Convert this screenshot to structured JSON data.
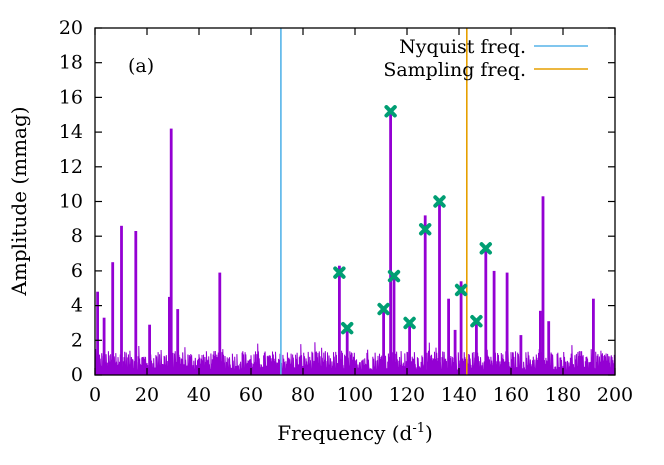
{
  "chart_data": {
    "type": "line",
    "panel_label": "(a)",
    "xlabel": "Frequency (d",
    "xlabel_sup": "-1",
    "xlabel_end": ")",
    "ylabel": "Amplitude (mmag)",
    "xlim": [
      0,
      200
    ],
    "ylim": [
      0,
      20
    ],
    "x_ticks": [
      "0",
      "20",
      "40",
      "60",
      "80",
      "100",
      "120",
      "140",
      "160",
      "180",
      "200"
    ],
    "y_ticks": [
      "0",
      "2",
      "4",
      "6",
      "8",
      "10",
      "12",
      "14",
      "16",
      "18",
      "20"
    ],
    "grid": false,
    "legend_position": "top-right",
    "colors": {
      "spectrum": "#9400d3",
      "marker": "#009e73",
      "nyquist": "#56b4e9",
      "sampling": "#e69f00"
    },
    "vertical_lines": [
      {
        "name": "Nyquist freq.",
        "x": 71.5,
        "color": "#56b4e9"
      },
      {
        "name": "Sampling freq.",
        "x": 143.0,
        "color": "#e69f00"
      }
    ],
    "peaks": [
      {
        "x": 1.0,
        "y": 4.8
      },
      {
        "x": 3.5,
        "y": 3.3
      },
      {
        "x": 6.8,
        "y": 6.5
      },
      {
        "x": 10.2,
        "y": 8.6
      },
      {
        "x": 15.7,
        "y": 8.3
      },
      {
        "x": 21.0,
        "y": 2.9
      },
      {
        "x": 28.6,
        "y": 4.5
      },
      {
        "x": 29.3,
        "y": 14.2
      },
      {
        "x": 31.8,
        "y": 3.8
      },
      {
        "x": 48.0,
        "y": 5.9
      },
      {
        "x": 94.0,
        "y": 6.3
      },
      {
        "x": 97.0,
        "y": 2.6
      },
      {
        "x": 111.0,
        "y": 3.8
      },
      {
        "x": 113.7,
        "y": 15.2
      },
      {
        "x": 115.0,
        "y": 5.7
      },
      {
        "x": 121.0,
        "y": 3.0
      },
      {
        "x": 127.0,
        "y": 9.2
      },
      {
        "x": 132.5,
        "y": 9.9
      },
      {
        "x": 136.0,
        "y": 4.4
      },
      {
        "x": 138.5,
        "y": 2.6
      },
      {
        "x": 140.8,
        "y": 5.4
      },
      {
        "x": 146.7,
        "y": 3.1
      },
      {
        "x": 150.3,
        "y": 7.2
      },
      {
        "x": 153.5,
        "y": 6.0
      },
      {
        "x": 158.5,
        "y": 5.9
      },
      {
        "x": 163.8,
        "y": 2.3
      },
      {
        "x": 171.3,
        "y": 3.7
      },
      {
        "x": 172.3,
        "y": 10.3
      },
      {
        "x": 174.5,
        "y": 3.1
      },
      {
        "x": 191.7,
        "y": 4.4
      }
    ],
    "markers": [
      {
        "x": 94.0,
        "y": 5.9
      },
      {
        "x": 97.0,
        "y": 2.7
      },
      {
        "x": 111.0,
        "y": 3.8
      },
      {
        "x": 113.7,
        "y": 15.2
      },
      {
        "x": 115.0,
        "y": 5.7
      },
      {
        "x": 121.0,
        "y": 3.0
      },
      {
        "x": 127.0,
        "y": 8.4
      },
      {
        "x": 132.5,
        "y": 10.0
      },
      {
        "x": 140.8,
        "y": 4.9
      },
      {
        "x": 146.7,
        "y": 3.1
      },
      {
        "x": 150.3,
        "y": 7.3
      }
    ],
    "noise_level": 1.4
  }
}
